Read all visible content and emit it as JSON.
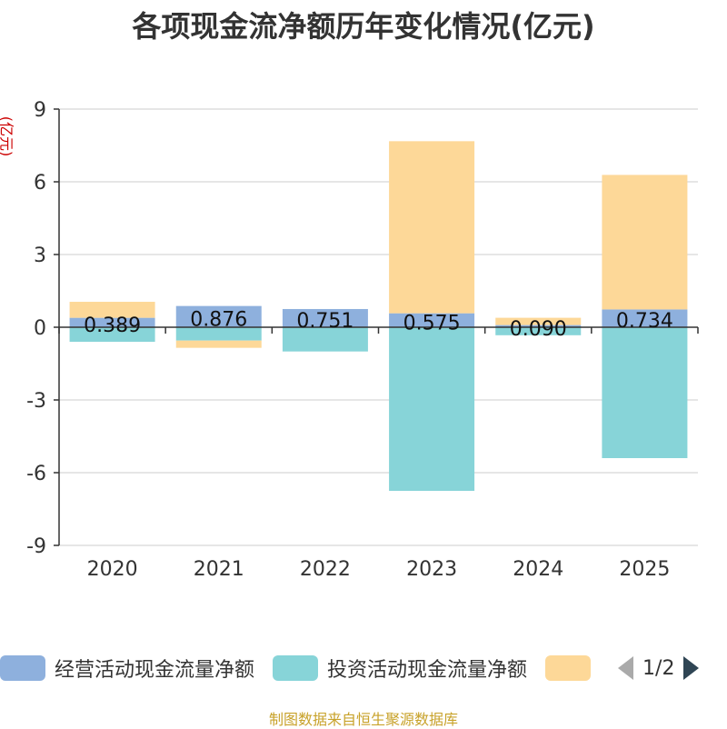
{
  "chart_data": {
    "type": "bar",
    "stacked": true,
    "title": "各项现金流净额历年变化情况(亿元)",
    "ylabel": "(亿元)",
    "categories": [
      "2020",
      "2021",
      "2022",
      "2023",
      "2024",
      "2025"
    ],
    "ylim": [
      -9,
      9
    ],
    "yticks": [
      -9,
      -6,
      -3,
      0,
      3,
      6,
      9
    ],
    "grid": true,
    "series": [
      {
        "name": "经营活动现金流量净额",
        "color": "#8eb0dd",
        "values": [
          0.389,
          0.876,
          0.751,
          0.575,
          0.09,
          0.734
        ],
        "labels": [
          "0.389",
          "0.876",
          "0.751",
          "0.575",
          "0.090",
          "0.734"
        ]
      },
      {
        "name": "投资活动现金流量净额",
        "color": "#87d4d8",
        "values": [
          -0.6,
          -0.55,
          -1.0,
          -6.75,
          -0.33,
          -5.4
        ]
      },
      {
        "name": "",
        "color": "#fdd898",
        "values": [
          0.66,
          -0.3,
          0.0,
          7.1,
          0.3,
          5.55
        ]
      }
    ]
  },
  "legend": {
    "pager_text": "1/2"
  },
  "source": "制图数据来自恒生聚源数据库"
}
